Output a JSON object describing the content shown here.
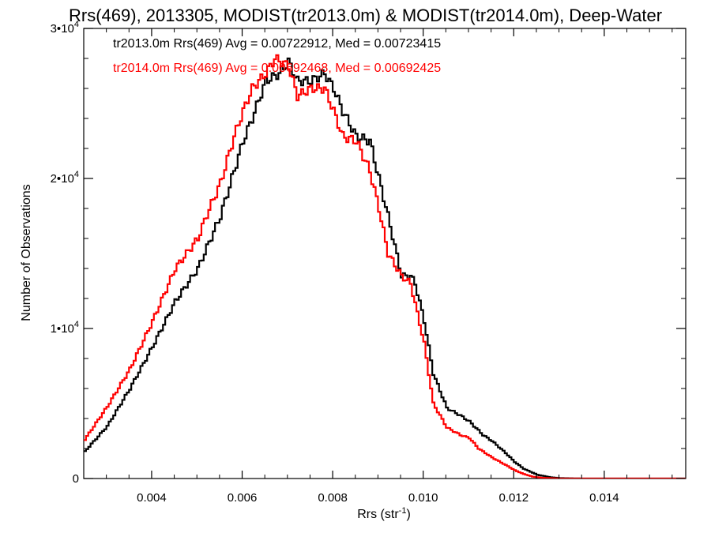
{
  "chart_data": {
    "type": "line",
    "title": "Rrs(469), 2013305, MODIST(tr2013.0m) & MODIST(tr2014.0m), Deep-Water",
    "xlabel": {
      "base": "Rrs (str",
      "sup": "-1",
      "close": ")"
    },
    "ylabel": "Number of Observations",
    "xlim": [
      0.0025,
      0.0158
    ],
    "ylim": [
      0,
      30000
    ],
    "x_ticks": [
      {
        "value": 0.004,
        "label": "0.004"
      },
      {
        "value": 0.006,
        "label": "0.006"
      },
      {
        "value": 0.008,
        "label": "0.008"
      },
      {
        "value": 0.01,
        "label": "0.010"
      },
      {
        "value": 0.012,
        "label": "0.012"
      },
      {
        "value": 0.014,
        "label": "0.014"
      }
    ],
    "y_ticks": [
      {
        "value": 0,
        "base": "0",
        "exp": ""
      },
      {
        "value": 10000,
        "base": "1•10",
        "exp": "4"
      },
      {
        "value": 20000,
        "base": "2•10",
        "exp": "4"
      },
      {
        "value": 30000,
        "base": "3•10",
        "exp": "4"
      }
    ],
    "series": [
      {
        "name": "tr2013.0m",
        "color": "#000000",
        "legend": "tr2013.0m Rrs(469) Avg = 0.00722912, Med = 0.00723415",
        "x": [
          0.0025,
          0.003,
          0.0035,
          0.004,
          0.0045,
          0.005,
          0.0055,
          0.0058,
          0.006,
          0.0062,
          0.0065,
          0.0068,
          0.007,
          0.0072,
          0.0075,
          0.0078,
          0.008,
          0.0082,
          0.0085,
          0.0088,
          0.009,
          0.0092,
          0.0095,
          0.0097,
          0.0098,
          0.01,
          0.0102,
          0.0105,
          0.0108,
          0.011,
          0.0113,
          0.0115,
          0.0118,
          0.012,
          0.0122,
          0.0125,
          0.0128,
          0.013,
          0.0133,
          0.0135,
          0.014,
          0.0145,
          0.015,
          0.0158
        ],
        "y": [
          1800,
          3500,
          6000,
          8800,
          11800,
          14000,
          17500,
          20500,
          22500,
          24000,
          26500,
          27000,
          27800,
          26500,
          26500,
          27000,
          26000,
          24500,
          22800,
          22500,
          20000,
          17500,
          13500,
          13500,
          13000,
          10500,
          7000,
          4700,
          4200,
          3800,
          2900,
          2500,
          1700,
          1100,
          650,
          250,
          80,
          30,
          10,
          0,
          0,
          0,
          0,
          0
        ]
      },
      {
        "name": "tr2014.0m",
        "color": "#ff0000",
        "legend": "tr2014.0m Rrs(469) Avg = 0.00692468, Med = 0.00692425",
        "x": [
          0.0025,
          0.003,
          0.0035,
          0.004,
          0.0045,
          0.005,
          0.0052,
          0.0055,
          0.0058,
          0.006,
          0.0062,
          0.0065,
          0.0067,
          0.007,
          0.0072,
          0.0075,
          0.0078,
          0.008,
          0.0082,
          0.0085,
          0.0088,
          0.009,
          0.0092,
          0.0095,
          0.0097,
          0.01,
          0.0102,
          0.0105,
          0.0108,
          0.011,
          0.0112,
          0.0115,
          0.0118,
          0.012,
          0.0122,
          0.0124,
          0.0126,
          0.0128,
          0.013,
          0.0135,
          0.014,
          0.015,
          0.0158
        ],
        "y": [
          2600,
          4800,
          7300,
          10500,
          14000,
          16000,
          17600,
          19700,
          22800,
          24500,
          26000,
          27000,
          28000,
          27500,
          25500,
          26000,
          26000,
          24500,
          22800,
          22500,
          20500,
          18000,
          15000,
          13500,
          13000,
          9000,
          5000,
          3400,
          2900,
          2700,
          2000,
          1400,
          900,
          550,
          300,
          120,
          50,
          20,
          0,
          0,
          0,
          0,
          0
        ]
      }
    ],
    "grid": false,
    "legend_position": "top-left"
  }
}
